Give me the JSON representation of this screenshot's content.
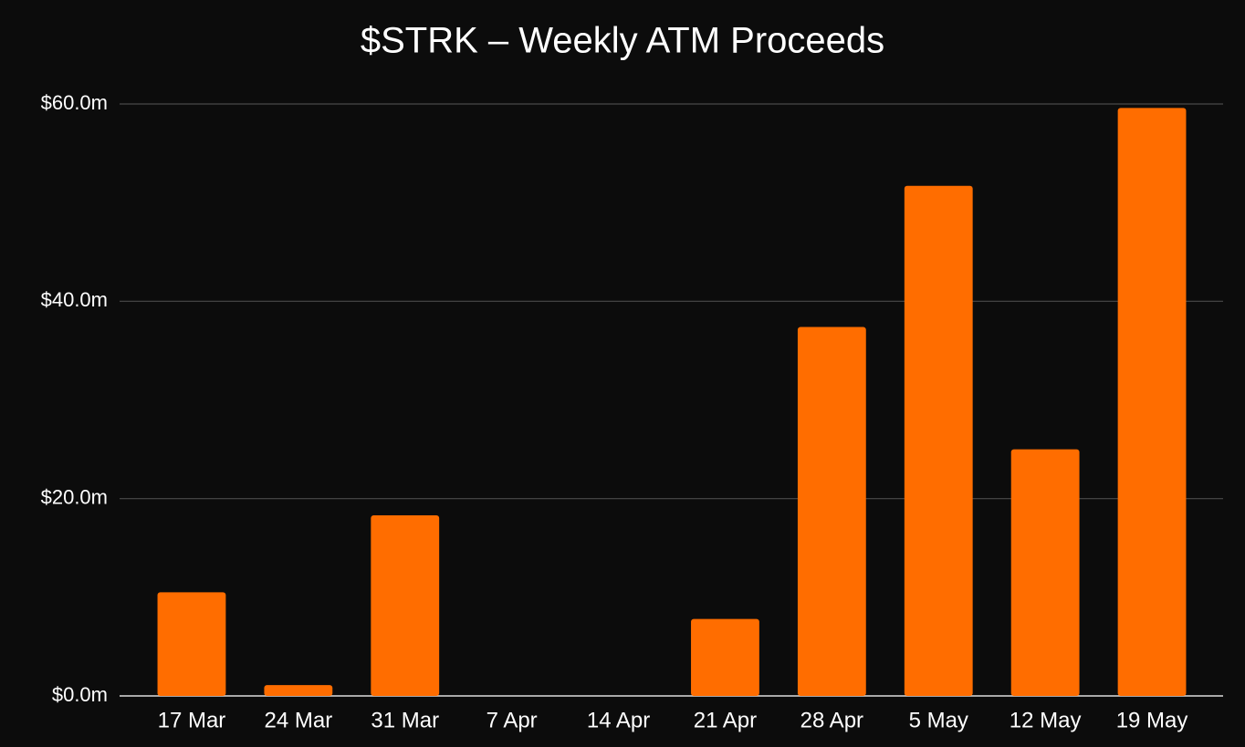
{
  "chart_data": {
    "type": "bar",
    "title": "$STRK – Weekly ATM Proceeds",
    "categories": [
      "17 Mar",
      "24 Mar",
      "31 Mar",
      "7 Apr",
      "14 Apr",
      "21 Apr",
      "28 Apr",
      "5 May",
      "12 May",
      "19 May"
    ],
    "values": [
      10.5,
      1.1,
      18.3,
      0,
      0,
      7.8,
      37.4,
      51.7,
      25.0,
      59.6
    ],
    "color": "#ff6d00",
    "ylim": [
      0,
      60
    ],
    "yticks": [
      {
        "value": 0,
        "label": "$0.0m"
      },
      {
        "value": 20,
        "label": "$20.0m"
      },
      {
        "value": 40,
        "label": "$40.0m"
      },
      {
        "value": 60,
        "label": "$60.0m"
      }
    ],
    "grid": true
  }
}
